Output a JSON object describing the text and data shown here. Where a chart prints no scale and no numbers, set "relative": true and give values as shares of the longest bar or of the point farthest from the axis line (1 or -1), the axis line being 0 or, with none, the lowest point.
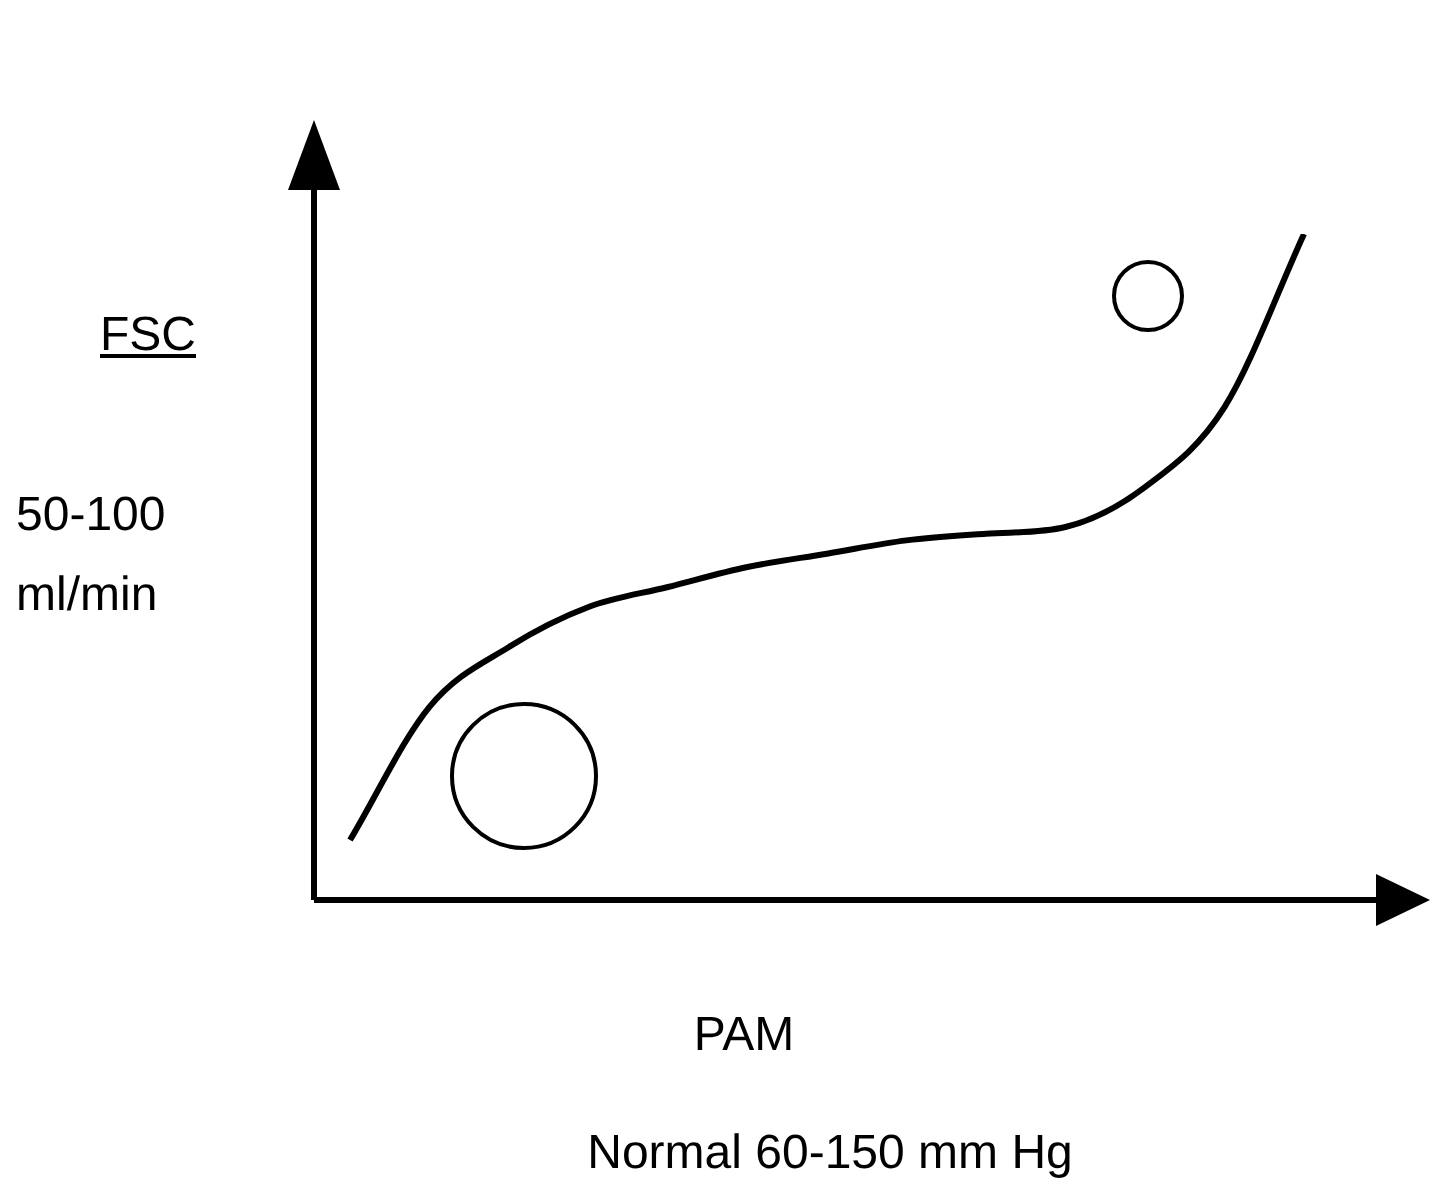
{
  "chart_data": {
    "type": "line",
    "relative": true,
    "ylabel": "FSC",
    "xlabel": "PAM",
    "annotations": [
      "50-100 ml/min",
      "Normal 60-150 mm Hg"
    ],
    "categories": [
      null,
      null,
      null,
      null,
      null,
      null,
      null,
      null,
      null,
      null,
      null,
      null,
      null
    ],
    "values": [
      0.09,
      0.29,
      0.38,
      0.44,
      0.47,
      0.5,
      0.52,
      0.54,
      0.55,
      0.56,
      0.62,
      0.74,
      1.0
    ],
    "color": "#000000",
    "marker": "none"
  }
}
